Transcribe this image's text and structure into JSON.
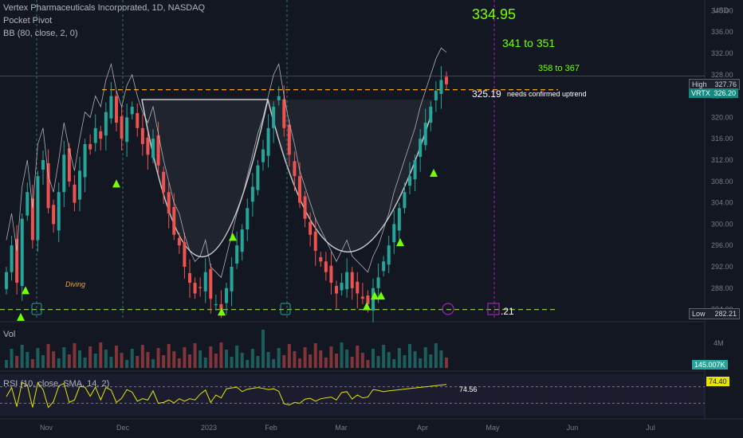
{
  "header": {
    "symbol_line": "Vertex Pharmaceuticals Incorporated, 1D, NASDAQ",
    "indicator_1": "Pocket Pivot",
    "indicator_2": "BB (80, close, 2, 0)",
    "vol_label": "Vol",
    "rsi_label": "RSI (10, close, SMA, 14, 2)"
  },
  "annotations": {
    "target_main": "334.95",
    "target_range_1": "341 to 351",
    "target_range_2": "358 to 367",
    "neckline_value": "325.19",
    "neckline_note": "needs confirmed uptrend",
    "bottom_value": ".21",
    "diving": "Diving",
    "rsi_value": "74.56"
  },
  "price_axis": {
    "currency": "USD",
    "ticks": [
      "340.00",
      "336.00",
      "332.00",
      "328.00",
      "324.00",
      "320.00",
      "316.00",
      "312.00",
      "308.00",
      "304.00",
      "300.00",
      "296.00",
      "292.00",
      "288.00",
      "284.00"
    ],
    "high_label": "High",
    "high_value": "327.76",
    "symbol_tag": "VRTX",
    "last_value": "326.20",
    "low_label": "Low",
    "low_value": "282.21",
    "vol_tick": "4M",
    "vol_value": "145.007K",
    "rsi_tag_value": "74.40"
  },
  "time_axis": [
    "Nov",
    "Dec",
    "2023",
    "Feb",
    "Mar",
    "Apr",
    "May",
    "Jun",
    "Jul"
  ],
  "colors": {
    "up": "#26a69a",
    "down": "#ef5350",
    "target_green": "#76ff03",
    "neckline_orange": "#f7a21b",
    "support_green": "#8bc34a",
    "rsi_yellow": "#e5e500",
    "earnings_purple": "#9c27b0"
  },
  "chart_data": {
    "type": "candlestick",
    "symbol": "VRTX",
    "exchange": "NASDAQ",
    "interval": "1D",
    "ylim": [
      282,
      342
    ],
    "levels": {
      "neckline": 325.19,
      "support": 284.0,
      "high": 327.76,
      "low": 282.21,
      "last": 326.2
    },
    "targets": [
      "334.95",
      "341 to 351",
      "358 to 367"
    ],
    "closes": [
      291,
      296,
      289,
      301,
      306,
      297,
      309,
      312,
      303,
      300,
      306,
      313,
      308,
      304,
      310,
      315,
      314,
      318,
      316,
      321,
      324,
      319,
      316,
      320,
      322,
      318,
      315,
      313,
      316,
      311,
      306,
      302,
      298,
      296,
      292,
      289,
      287,
      288,
      291,
      286,
      285,
      284,
      288,
      292,
      296,
      299,
      303,
      307,
      311,
      314,
      318,
      322,
      324,
      318,
      313,
      309,
      304,
      301,
      298,
      295,
      293,
      291,
      289,
      287,
      289,
      291,
      288,
      287,
      286,
      285,
      288,
      290,
      293,
      296,
      300,
      303,
      306,
      309,
      312,
      316,
      319,
      322,
      325,
      327,
      326.2
    ],
    "rsi": {
      "label": "RSI (10, close, SMA, 14, 2)",
      "value": 74.56,
      "sma_value": 74.4,
      "upper": 70,
      "lower": 30
    },
    "volume": {
      "last": "145.007K"
    }
  }
}
